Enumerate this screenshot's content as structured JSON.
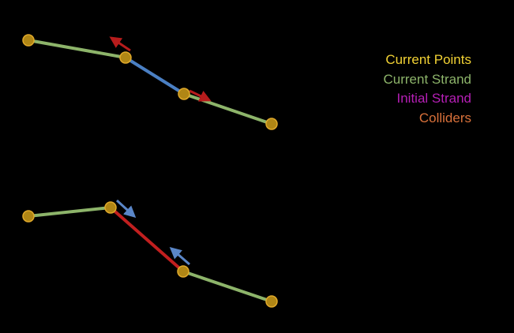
{
  "legend": {
    "current_points": {
      "label": "Current Points",
      "color": "#F2D234"
    },
    "current_strand": {
      "label": "Current Strand",
      "color": "#8DB46A"
    },
    "initial_strand": {
      "label": "Initial Strand",
      "color": "#B61FB6"
    },
    "colliders": {
      "label": "Colliders",
      "color": "#D9713A"
    }
  },
  "colors": {
    "background": "#000000",
    "point_fill": "#B08615",
    "point_stroke": "#E0A92A",
    "strand": "#8DB46A",
    "blue_segment": "#4A7FC3",
    "red_segment": "#C11F1F",
    "red_arrow": "#B71C1C",
    "blue_arrow": "#5A86C8"
  },
  "diagrams": [
    {
      "name": "top-strand",
      "highlight_segment": "blue",
      "arrow_color": "red"
    },
    {
      "name": "bottom-strand",
      "highlight_segment": "red",
      "arrow_color": "blue"
    }
  ]
}
